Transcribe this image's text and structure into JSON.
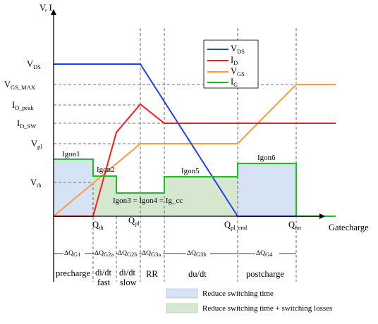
{
  "diagram": {
    "y_axis_label": "V, I",
    "x_axis_label": "Gatecharge",
    "y_levels": [
      {
        "id": "vds",
        "main": "V",
        "sub": "DS"
      },
      {
        "id": "vgsmax",
        "main": "V",
        "sub": "GS_MAX"
      },
      {
        "id": "idpeak",
        "main": "I",
        "sub": "D_peak"
      },
      {
        "id": "idsw",
        "main": "I",
        "sub": "D_SW"
      },
      {
        "id": "vpl",
        "main": "V",
        "sub": "pl"
      },
      {
        "id": "vth",
        "main": "V",
        "sub": "th"
      }
    ],
    "x_marks": [
      {
        "id": "qth",
        "main": "Q",
        "sub": "th"
      },
      {
        "id": "qpl",
        "main": "Q",
        "sub": "pl"
      },
      {
        "id": "qplend",
        "main": "Q",
        "sub": "pl_end"
      },
      {
        "id": "qtot",
        "main": "Q",
        "sub": "tot"
      }
    ],
    "region_labels": [
      {
        "id": "igon1",
        "text": "Igon1"
      },
      {
        "id": "igon2",
        "text": "Igon2"
      },
      {
        "id": "igon5",
        "text": "Igon5"
      },
      {
        "id": "igon6",
        "text": "Igon6"
      }
    ],
    "annotation": "Igon3 = Igon4 = Ig_cc",
    "legend": [
      {
        "main": "V",
        "sub": "DS",
        "color": "#1f3fff"
      },
      {
        "main": "I",
        "sub": "D",
        "color": "#ff1a1a"
      },
      {
        "main": "V",
        "sub": "GS",
        "color": "#ff9a3c"
      },
      {
        "main": "I",
        "sub": "G",
        "color": "#1fbf1f"
      }
    ],
    "delta_q": [
      {
        "id": "g1",
        "main": "ΔQ",
        "sub": "G1"
      },
      {
        "id": "g2a",
        "main": "ΔQ",
        "sub": "G2a"
      },
      {
        "id": "g2b",
        "main": "ΔQ",
        "sub": "G2b"
      },
      {
        "id": "g3a",
        "main": "ΔQ",
        "sub": "G3a"
      },
      {
        "id": "g3b",
        "main": "ΔQ",
        "sub": "G3b"
      },
      {
        "id": "g4",
        "main": "ΔQ",
        "sub": "G4"
      }
    ],
    "phases": [
      {
        "id": "precharge",
        "lines": [
          "precharge"
        ]
      },
      {
        "id": "didtfast",
        "lines": [
          "di/dt",
          "fast"
        ]
      },
      {
        "id": "didtslow",
        "lines": [
          "di/dt",
          "slow"
        ]
      },
      {
        "id": "rr",
        "lines": [
          "RR"
        ]
      },
      {
        "id": "dudt",
        "lines": [
          "du/dt"
        ]
      },
      {
        "id": "postcharge",
        "lines": [
          "postcharge"
        ]
      }
    ],
    "bottom_legend": [
      {
        "id": "blue",
        "text": "Reduce switching time",
        "color": "#d5e3f5"
      },
      {
        "id": "green",
        "text": "Reduce switching time + switching losses",
        "color": "#d5e8cf"
      }
    ],
    "colors": {
      "vds": "#1f3fff",
      "id": "#ff1a1a",
      "vgs": "#ff9a3c",
      "ig": "#1fbf1f",
      "fill_blue": "#d5e3f5",
      "fill_green": "#d5e8cf"
    }
  }
}
